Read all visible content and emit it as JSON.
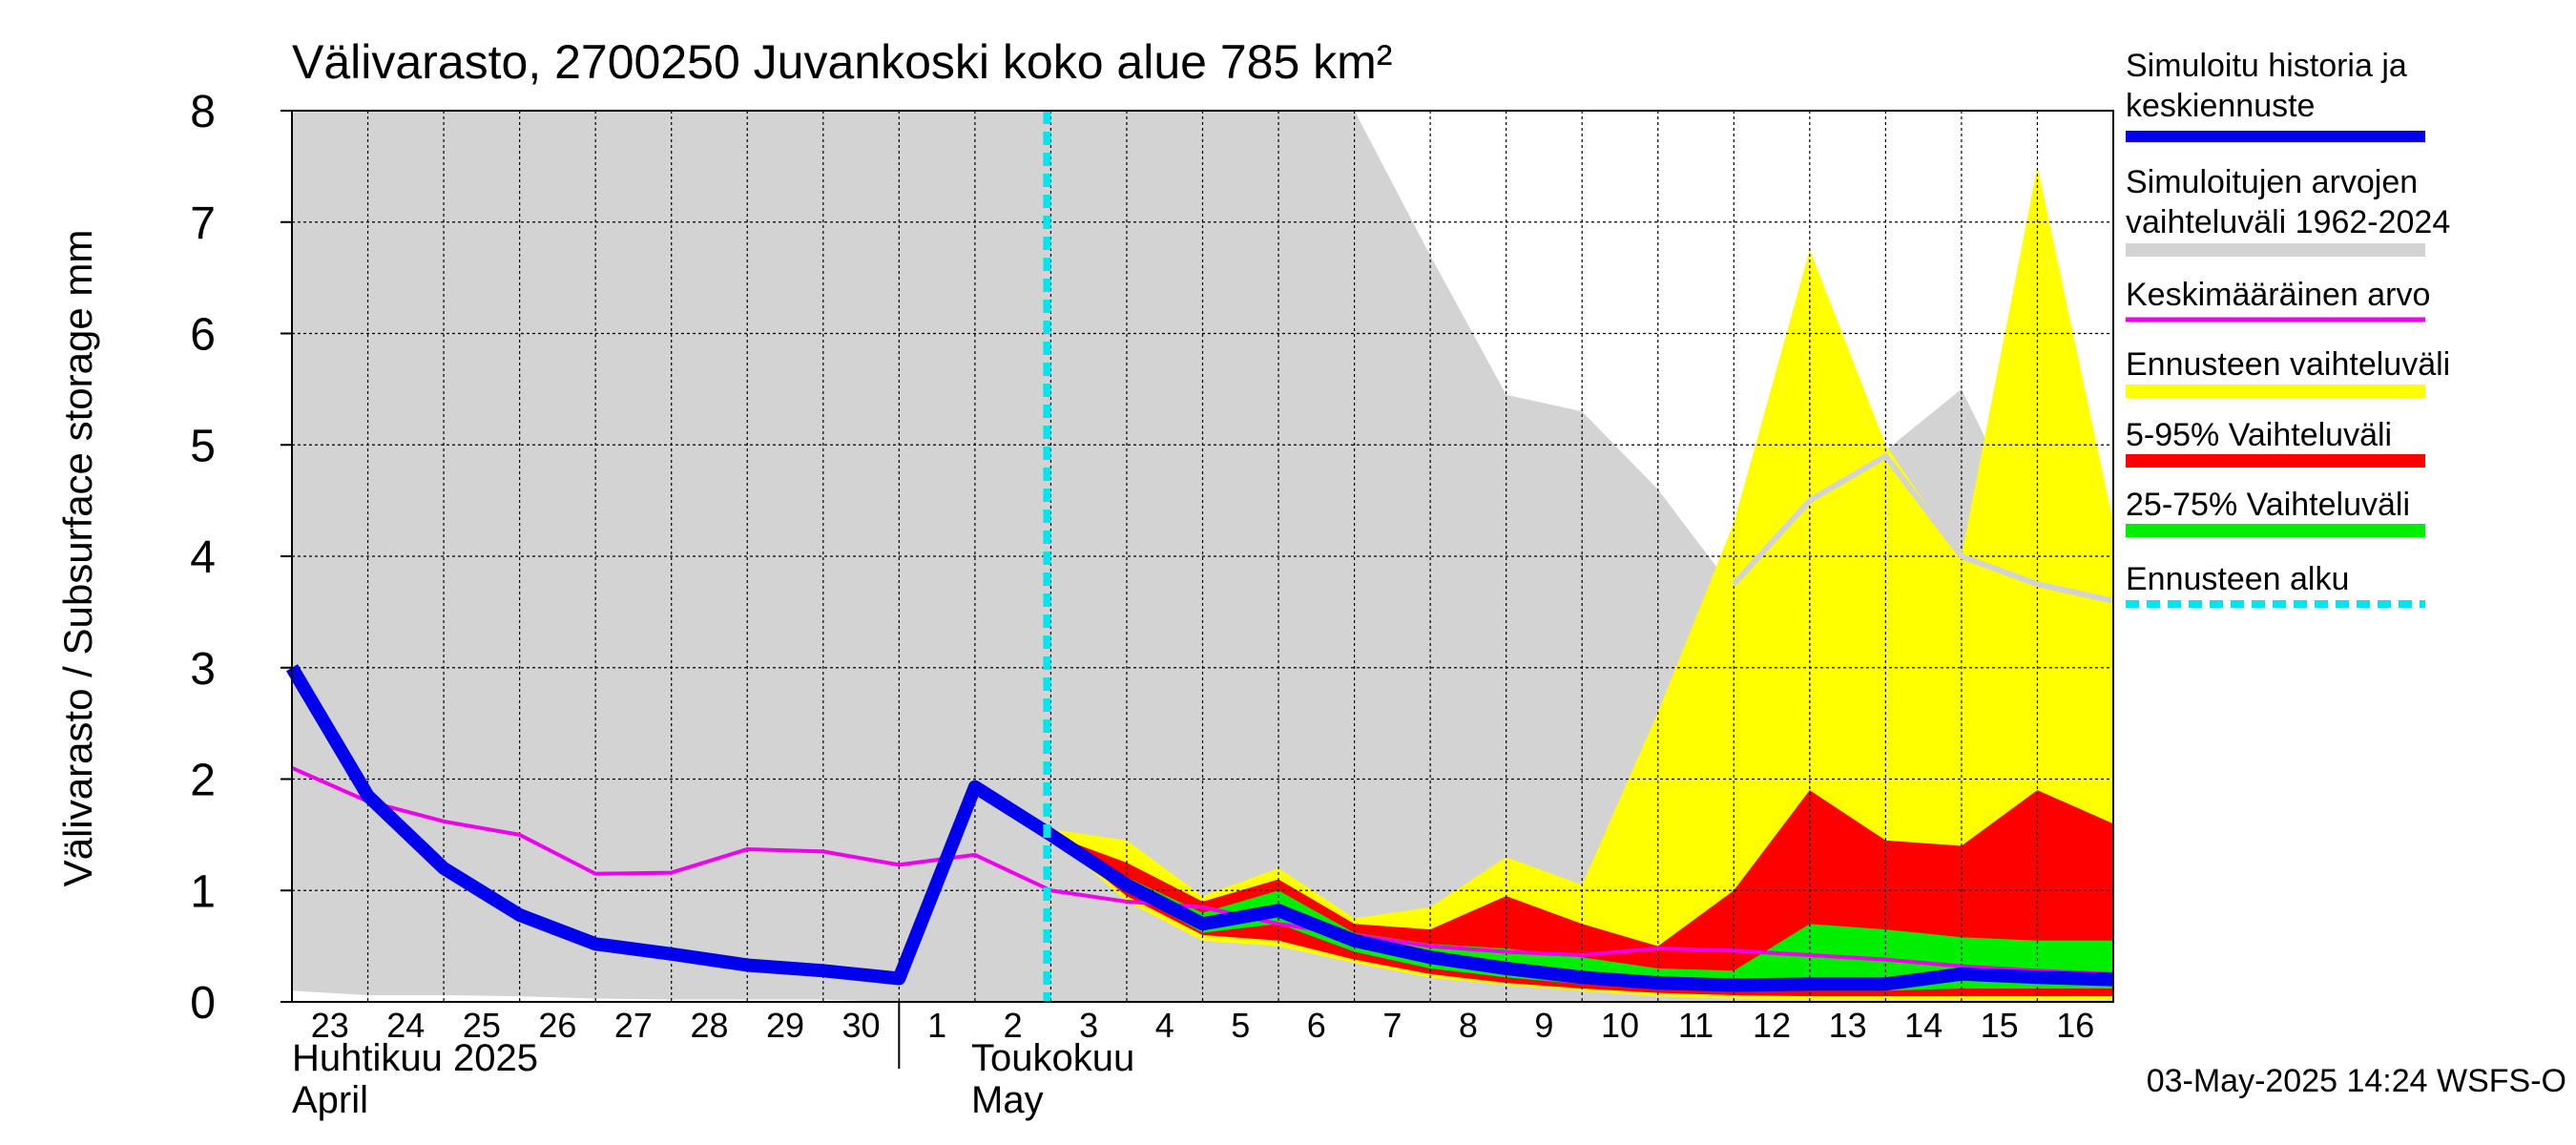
{
  "chart_data": {
    "type": "area",
    "title": "Välivarasto, 2700250 Juvankoski koko alue 785 km²",
    "ylabel": "Välivarasto / Subsurface storage  mm",
    "ylim": [
      0,
      8
    ],
    "yticks": [
      "0",
      "1",
      "2",
      "3",
      "4",
      "5",
      "6",
      "7",
      "8"
    ],
    "grid": true,
    "x_day_labels": [
      "23",
      "24",
      "25",
      "26",
      "27",
      "28",
      "29",
      "30",
      "1",
      "2",
      "3",
      "4",
      "5",
      "6",
      "7",
      "8",
      "9",
      "10",
      "11",
      "12",
      "13",
      "14",
      "15",
      "16"
    ],
    "month_labels": [
      {
        "fi": "Huhtikuu  2025",
        "en": "April"
      },
      {
        "fi": "Toukokuu",
        "en": "May"
      }
    ],
    "forecast_start": "3",
    "footer": "03-May-2025 14:24 WSFS-O",
    "legend_position": "right",
    "legend": [
      {
        "label": [
          "Simuloitu historia ja",
          "keskiennuste"
        ],
        "color": "#0000ee",
        "style": "thick-line"
      },
      {
        "label": [
          "Simuloitujen arvojen",
          "vaihteluväli 1962-2024"
        ],
        "color": "#d3d3d3",
        "style": "band"
      },
      {
        "label": [
          "Keskimääräinen arvo"
        ],
        "color": "#ee00ee",
        "style": "line"
      },
      {
        "label": [
          "Ennusteen vaihteluväli"
        ],
        "color": "#ffff00",
        "style": "band"
      },
      {
        "label": [
          "5-95% Vaihteluväli"
        ],
        "color": "#ff0000",
        "style": "band"
      },
      {
        "label": [
          "25-75% Vaihteluväli"
        ],
        "color": "#00ee00",
        "style": "band"
      },
      {
        "label": [
          "Ennusteen alku"
        ],
        "color": "#00e5ee",
        "style": "dashed"
      }
    ],
    "x_dates": [
      "2025-04-23",
      "2025-04-24",
      "2025-04-25",
      "2025-04-26",
      "2025-04-27",
      "2025-04-28",
      "2025-04-29",
      "2025-04-30",
      "2025-05-01",
      "2025-05-02",
      "2025-05-03",
      "2025-05-04",
      "2025-05-05",
      "2025-05-06",
      "2025-05-07",
      "2025-05-08",
      "2025-05-09",
      "2025-05-10",
      "2025-05-11",
      "2025-05-12",
      "2025-05-13",
      "2025-05-14",
      "2025-05-15",
      "2025-05-16",
      "2025-05-17"
    ],
    "historical_range": {
      "upper": [
        8,
        8,
        8,
        8,
        8,
        8,
        8,
        8,
        8,
        8,
        8,
        8,
        8,
        8,
        8,
        6.7,
        5.45,
        5.3,
        4.6,
        3.7,
        4.5,
        4.95,
        5.5,
        4.1,
        4.1
      ],
      "lower": [
        0.1,
        0.06,
        0.06,
        0.05,
        0.03,
        0.02,
        0.02,
        0.02,
        0,
        0,
        0,
        0,
        0,
        0,
        0,
        0,
        0,
        0,
        0,
        0,
        0,
        0,
        0,
        0,
        0
      ]
    },
    "historical_line": [
      null,
      null,
      null,
      null,
      null,
      null,
      null,
      null,
      null,
      null,
      null,
      null,
      null,
      null,
      null,
      null,
      null,
      null,
      null,
      3.75,
      4.5,
      4.9,
      4.0,
      3.75,
      3.6
    ],
    "simulated": {
      "x": [
        "2025-04-23",
        "2025-04-24",
        "2025-04-25",
        "2025-04-26",
        "2025-04-27",
        "2025-04-28",
        "2025-04-29",
        "2025-04-30",
        "2025-05-01",
        "2025-05-02",
        "2025-05-03",
        "2025-05-04",
        "2025-05-05",
        "2025-05-06",
        "2025-05-07",
        "2025-05-08",
        "2025-05-09",
        "2025-05-10",
        "2025-05-11",
        "2025-05-12",
        "2025-05-13",
        "2025-05-14",
        "2025-05-15",
        "2025-05-16",
        "2025-05-17"
      ],
      "y": [
        3.0,
        1.85,
        1.2,
        0.78,
        0.52,
        0.43,
        0.33,
        0.28,
        0.21,
        1.93,
        1.5,
        1.05,
        0.7,
        0.82,
        0.55,
        0.4,
        0.3,
        0.22,
        0.17,
        0.15,
        0.16,
        0.16,
        0.25,
        0.22,
        0.2
      ]
    },
    "mean": {
      "x": [
        "2025-04-23",
        "2025-04-24",
        "2025-04-25",
        "2025-04-26",
        "2025-04-27",
        "2025-04-28",
        "2025-04-29",
        "2025-04-30",
        "2025-05-01",
        "2025-05-02",
        "2025-05-03",
        "2025-05-04",
        "2025-05-05",
        "2025-05-06",
        "2025-05-07",
        "2025-05-08",
        "2025-05-09",
        "2025-05-10",
        "2025-05-11",
        "2025-05-12",
        "2025-05-13",
        "2025-05-14",
        "2025-05-15",
        "2025-05-16",
        "2025-05-17"
      ],
      "y": [
        2.1,
        1.8,
        1.62,
        1.5,
        1.15,
        1.16,
        1.37,
        1.35,
        1.23,
        1.32,
        1.0,
        0.9,
        0.85,
        0.7,
        0.6,
        0.5,
        0.45,
        0.42,
        0.48,
        0.46,
        0.42,
        0.38,
        0.32,
        0.28,
        0.25
      ]
    },
    "forecast_range": {
      "x": [
        "2025-05-03",
        "2025-05-04",
        "2025-05-05",
        "2025-05-06",
        "2025-05-07",
        "2025-05-08",
        "2025-05-09",
        "2025-05-10",
        "2025-05-11",
        "2025-05-12",
        "2025-05-13",
        "2025-05-14",
        "2025-05-15",
        "2025-05-16",
        "2025-05-17"
      ],
      "upper": [
        1.55,
        1.45,
        0.95,
        1.2,
        0.75,
        0.85,
        1.3,
        1.05,
        2.6,
        4.3,
        6.75,
        5.0,
        4.0,
        7.5,
        4.3
      ],
      "lower": [
        1.5,
        0.9,
        0.55,
        0.5,
        0.35,
        0.22,
        0.15,
        0.1,
        0.05,
        0.03,
        0.02,
        0.02,
        0.02,
        0.02,
        0.02
      ]
    },
    "p5_95": {
      "x": [
        "2025-05-03",
        "2025-05-04",
        "2025-05-05",
        "2025-05-06",
        "2025-05-07",
        "2025-05-08",
        "2025-05-09",
        "2025-05-10",
        "2025-05-11",
        "2025-05-12",
        "2025-05-13",
        "2025-05-14",
        "2025-05-15",
        "2025-05-16",
        "2025-05-17"
      ],
      "upper": [
        1.5,
        1.25,
        0.9,
        1.1,
        0.7,
        0.65,
        0.95,
        0.7,
        0.5,
        1.0,
        1.9,
        1.45,
        1.4,
        1.9,
        1.6
      ],
      "lower": [
        1.5,
        0.95,
        0.6,
        0.55,
        0.38,
        0.25,
        0.17,
        0.12,
        0.08,
        0.06,
        0.05,
        0.05,
        0.05,
        0.05,
        0.05
      ]
    },
    "p25_75": {
      "x": [
        "2025-05-03",
        "2025-05-04",
        "2025-05-05",
        "2025-05-06",
        "2025-05-07",
        "2025-05-08",
        "2025-05-09",
        "2025-05-10",
        "2025-05-11",
        "2025-05-12",
        "2025-05-13",
        "2025-05-14",
        "2025-05-15",
        "2025-05-16",
        "2025-05-17"
      ],
      "upper": [
        1.5,
        1.12,
        0.8,
        1.0,
        0.62,
        0.52,
        0.48,
        0.4,
        0.3,
        0.28,
        0.7,
        0.65,
        0.58,
        0.55,
        0.55
      ],
      "lower": [
        1.5,
        1.0,
        0.62,
        0.7,
        0.45,
        0.3,
        0.22,
        0.16,
        0.12,
        0.1,
        0.1,
        0.1,
        0.12,
        0.12,
        0.12
      ]
    }
  }
}
